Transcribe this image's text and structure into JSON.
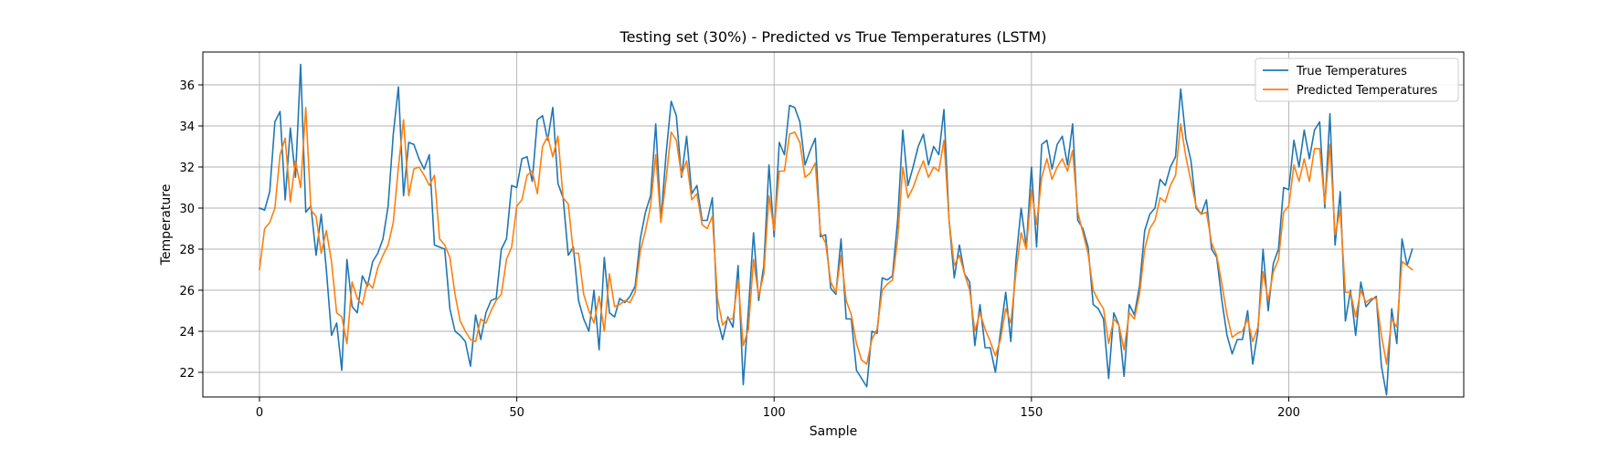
{
  "chart_data": {
    "type": "line",
    "title": "Testing set (30%) - Predicted vs True Temperatures (LSTM)",
    "xlabel": "Sample",
    "ylabel": "Temperature",
    "xlim": [
      -11,
      234
    ],
    "ylim": [
      20.8,
      37.6
    ],
    "xticks": [
      0,
      50,
      100,
      150,
      200
    ],
    "yticks": [
      22,
      24,
      26,
      28,
      30,
      32,
      34,
      36
    ],
    "grid": true,
    "legend_position": "top-right",
    "series": [
      {
        "name": "True Temperatures",
        "color": "#1f77b4",
        "values": [
          30.0,
          29.9,
          30.8,
          34.2,
          34.7,
          30.4,
          33.9,
          31.5,
          37.0,
          29.8,
          30.1,
          27.7,
          29.7,
          27.0,
          23.8,
          24.4,
          22.1,
          27.5,
          25.2,
          24.9,
          26.7,
          26.2,
          27.4,
          27.8,
          28.5,
          30.1,
          33.6,
          35.9,
          30.6,
          33.2,
          33.1,
          32.4,
          31.9,
          32.6,
          28.2,
          28.1,
          28.0,
          25.1,
          24.0,
          23.8,
          23.5,
          22.3,
          24.8,
          23.6,
          24.9,
          25.5,
          25.6,
          28.0,
          28.5,
          31.1,
          31.0,
          32.4,
          32.5,
          31.3,
          34.3,
          34.5,
          33.3,
          34.9,
          31.2,
          30.5,
          27.7,
          28.1,
          25.5,
          24.6,
          24.0,
          26.0,
          23.1,
          27.6,
          24.9,
          24.7,
          25.6,
          25.4,
          25.7,
          26.2,
          28.5,
          29.8,
          30.6,
          34.1,
          29.4,
          32.6,
          35.2,
          34.5,
          31.5,
          33.5,
          30.7,
          31.1,
          29.4,
          29.4,
          30.5,
          24.6,
          23.6,
          24.7,
          24.2,
          27.2,
          21.4,
          25.0,
          28.8,
          25.5,
          27.2,
          32.1,
          28.6,
          33.2,
          32.6,
          35.0,
          34.9,
          34.2,
          32.1,
          32.8,
          33.4,
          28.6,
          28.7,
          26.1,
          25.8,
          28.5,
          24.6,
          24.6,
          22.1,
          21.7,
          21.3,
          24.0,
          23.9,
          26.6,
          26.5,
          26.7,
          29.4,
          33.8,
          31.1,
          32.0,
          33.0,
          33.6,
          32.1,
          33.0,
          32.6,
          34.8,
          29.4,
          26.6,
          28.2,
          26.8,
          26.4,
          23.3,
          25.3,
          23.2,
          23.2,
          22.0,
          24.0,
          25.9,
          23.5,
          27.5,
          30.0,
          28.1,
          32.0,
          28.1,
          33.1,
          33.3,
          31.9,
          33.1,
          33.5,
          32.1,
          34.1,
          29.4,
          29.0,
          28.1,
          25.3,
          25.1,
          24.6,
          21.7,
          24.9,
          24.3,
          21.8,
          25.3,
          24.8,
          26.2,
          28.9,
          29.7,
          30.0,
          31.4,
          31.1,
          32.0,
          32.5,
          35.8,
          33.4,
          32.3,
          30.0,
          29.7,
          30.4,
          28.0,
          27.6,
          25.5,
          23.8,
          22.9,
          23.6,
          23.6,
          25.0,
          22.4,
          24.0,
          28.0,
          25.0,
          27.3,
          28.0,
          31.0,
          30.9,
          33.3,
          32.0,
          33.8,
          32.4,
          33.8,
          34.2,
          30.0,
          34.6,
          28.2,
          30.8,
          24.5,
          26.0,
          23.8,
          26.4,
          25.2,
          25.5,
          25.7,
          22.3,
          20.9,
          25.1,
          23.4,
          28.5,
          27.2,
          28.0
        ]
      },
      {
        "name": "Predicted Temperatures",
        "color": "#ff7f0e",
        "values": [
          27.0,
          29.0,
          29.3,
          30.0,
          32.6,
          33.4,
          30.3,
          32.3,
          31.0,
          34.9,
          29.9,
          29.6,
          27.8,
          28.9,
          27.4,
          24.9,
          24.7,
          23.4,
          26.4,
          25.6,
          25.3,
          26.4,
          26.1,
          27.1,
          27.7,
          28.2,
          29.3,
          32.0,
          34.3,
          30.6,
          31.9,
          32.0,
          31.6,
          31.1,
          31.6,
          28.5,
          28.2,
          27.6,
          25.8,
          24.5,
          24.0,
          23.6,
          23.5,
          24.6,
          24.4,
          25.0,
          25.5,
          25.8,
          27.5,
          28.1,
          30.1,
          30.4,
          31.6,
          31.8,
          30.7,
          33.0,
          33.5,
          32.5,
          33.5,
          30.5,
          30.2,
          27.8,
          27.8,
          25.8,
          25.0,
          24.4,
          25.7,
          24.0,
          26.8,
          25.2,
          25.3,
          25.5,
          25.4,
          25.9,
          27.9,
          28.9,
          30.1,
          32.6,
          29.3,
          31.4,
          33.7,
          33.3,
          31.6,
          32.3,
          30.4,
          30.7,
          29.2,
          29.0,
          29.6,
          25.6,
          24.3,
          24.6,
          24.6,
          26.5,
          23.3,
          24.1,
          27.5,
          25.7,
          26.8,
          30.6,
          28.9,
          31.8,
          31.8,
          33.6,
          33.7,
          33.2,
          31.5,
          31.7,
          32.2,
          28.8,
          28.3,
          26.4,
          25.9,
          27.7,
          25.5,
          24.8,
          23.4,
          22.6,
          22.4,
          23.6,
          24.1,
          26.0,
          26.3,
          26.5,
          28.5,
          32.0,
          30.5,
          31.0,
          31.7,
          32.3,
          31.5,
          32.0,
          31.8,
          33.3,
          29.4,
          27.2,
          27.7,
          26.8,
          26.0,
          24.0,
          24.9,
          24.1,
          23.5,
          22.8,
          23.6,
          25.1,
          24.4,
          26.9,
          28.8,
          28.0,
          30.9,
          29.2,
          31.5,
          32.4,
          31.4,
          32.0,
          32.4,
          31.8,
          32.8,
          29.8,
          28.8,
          27.8,
          26.0,
          25.5,
          25.1,
          23.4,
          24.6,
          24.3,
          23.1,
          24.9,
          24.6,
          25.8,
          28.0,
          29.0,
          29.4,
          30.5,
          30.3,
          31.1,
          31.6,
          34.1,
          32.5,
          31.3,
          30.1,
          29.7,
          29.8,
          28.3,
          27.7,
          26.3,
          24.8,
          23.7,
          23.9,
          24.0,
          24.6,
          23.5,
          24.2,
          26.9,
          25.5,
          26.9,
          27.5,
          29.8,
          30.1,
          32.1,
          31.3,
          32.4,
          31.3,
          32.9,
          32.9,
          30.2,
          33.1,
          28.7,
          29.9,
          25.9,
          25.9,
          24.7,
          26.0,
          25.4,
          25.6,
          25.6,
          23.8,
          22.4,
          24.6,
          24.2,
          27.4,
          27.2,
          27.0
        ]
      }
    ]
  }
}
